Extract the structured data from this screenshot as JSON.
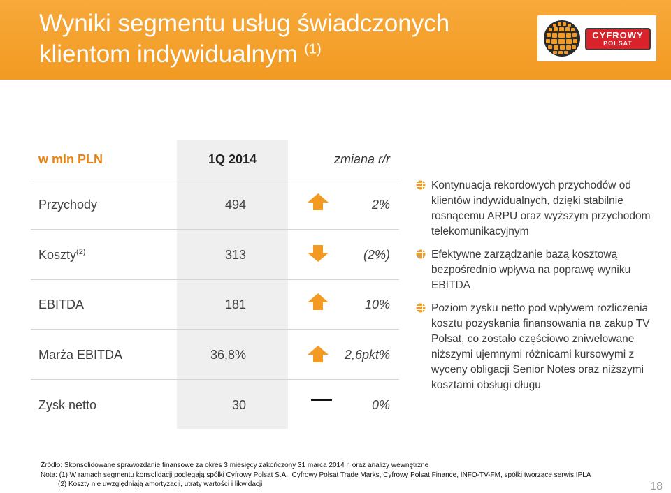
{
  "header": {
    "title_line1": "Wyniki segmentu usług świadczonych",
    "title_line2": "klientom indywidualnym",
    "title_note": "(1)",
    "logo_text_top": "CYFROWY",
    "logo_text_bottom": "POLSAT",
    "background_color": "#f39c25"
  },
  "table": {
    "header": {
      "unit": "w mln PLN",
      "period": "1Q 2014",
      "change": "zmiana r/r"
    },
    "rows": [
      {
        "label": "Przychody",
        "note": "",
        "value": "494",
        "trend": "up",
        "trend_icon": "arrow-up-icon",
        "change": "2%"
      },
      {
        "label": "Koszty",
        "note": "(2)",
        "value": "313",
        "trend": "down",
        "trend_icon": "arrow-down-icon",
        "change": "(2%)"
      },
      {
        "label": "EBITDA",
        "note": "",
        "value": "181",
        "trend": "up",
        "trend_icon": "arrow-up-icon",
        "change": "10%"
      },
      {
        "label": "Marża EBITDA",
        "note": "",
        "value": "36,8%",
        "trend": "up",
        "trend_icon": "arrow-up-icon",
        "change": "2,6pkt%"
      },
      {
        "label": "Zysk netto",
        "note": "",
        "value": "30",
        "trend": "flat",
        "trend_icon": "dash-icon",
        "change": "0%"
      }
    ]
  },
  "bullets": [
    "Kontynuacja rekordowych przychodów od klientów indywidualnych, dzięki stabilnie rosnącemu ARPU oraz wyższym przychodom telekomunikacyjnym",
    "Efektywne zarządzanie bazą kosztową bezpośrednio wpływa na poprawę wyniku EBITDA",
    "Poziom zysku netto pod wpływem rozliczenia kosztu pozyskania finansowania na zakup TV Polsat, co zostało częściowo zniwelowane niższymi ujemnymi różnicami kursowymi z wyceny obligacji Senior Notes oraz niższymi kosztami obsługi długu"
  ],
  "footer": {
    "source": "Źródło: Skonsolidowane sprawozdanie finansowe za okres 3 miesięcy zakończony 31 marca 2014 r. oraz analizy wewnętrzne",
    "note1": "Nota: (1) W ramach segmentu konsolidacji podlegają spółki Cyfrowy Polsat S.A., Cyfrowy Polsat Trade Marks, Cyfrowy Polsat Finance, INFO-TV-FM, spółki tworzące serwis IPLA",
    "note2": "(2) Koszty nie uwzględniają amortyzacji, utraty wartości i likwidacji"
  },
  "page_number": "18",
  "colors": {
    "accent_orange": "#e8830f",
    "arrow_orange": "#f29a22",
    "logo_red": "#d9222a",
    "column_band": "#efefef"
  }
}
